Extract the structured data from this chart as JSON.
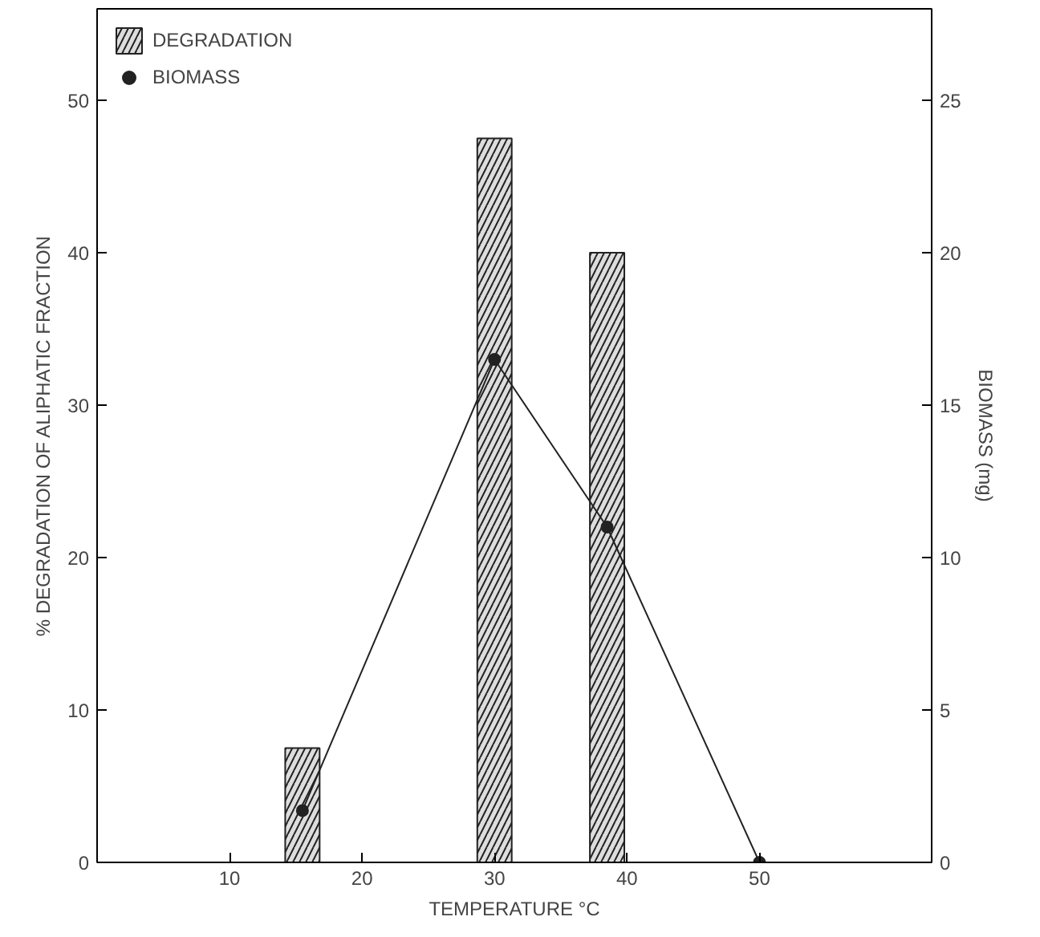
{
  "chart_data": {
    "type": "bar",
    "xlabel": "TEMPERATURE °C",
    "ylabel": "% DEGRADATION OF ALIPHATIC FRACTION",
    "y2label": "BIOMASS (mg)",
    "x": [
      15.5,
      30,
      38.5
    ],
    "series": [
      {
        "name": "DEGRADATION",
        "color": "#dddddd",
        "values": [
          7.5,
          47.5,
          40
        ]
      },
      {
        "name": "BIOMASS",
        "type": "line",
        "axis": "y2",
        "color": "#222222",
        "x": [
          15.5,
          30,
          38.5,
          50
        ],
        "values": [
          1.7,
          16.5,
          11,
          0
        ]
      }
    ],
    "xlim": [
      0,
      63
    ],
    "xticks": [
      10,
      20,
      30,
      40,
      50
    ],
    "ylim": [
      0,
      56
    ],
    "yticks": [
      0,
      10,
      20,
      30,
      40,
      50
    ],
    "y2lim": [
      0,
      28
    ],
    "y2ticks": [
      0,
      5,
      10,
      15,
      20,
      25
    ],
    "marker": "circle",
    "grid": false,
    "legend": "top left"
  }
}
